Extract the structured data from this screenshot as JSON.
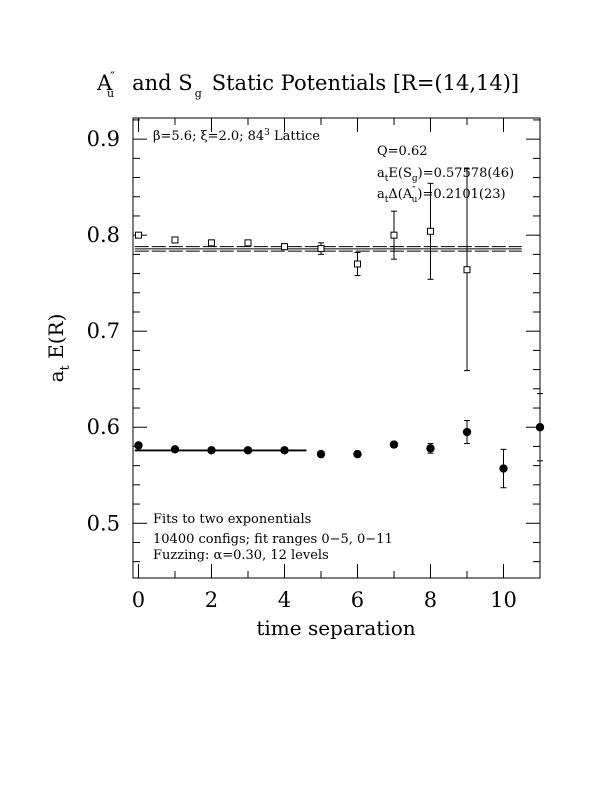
{
  "chart_data": {
    "type": "scatter",
    "title": {
      "part1": "A",
      "part1_sup": "″",
      "part1_sub": "u",
      "part2": "and S",
      "part2_sub": "g",
      "part3": "Static Potentials [R=(14,14)]"
    },
    "xlabel": "time separation",
    "ylabel": {
      "main": "a",
      "sub": "t",
      "rest": " E(R)"
    },
    "xlim": [
      -0.15,
      11.0
    ],
    "ylim": [
      0.443,
      0.922
    ],
    "x_ticks": [
      0,
      2,
      4,
      6,
      8,
      10
    ],
    "y_ticks": [
      0.5,
      0.6,
      0.7,
      0.8,
      0.9
    ],
    "y_tick_labels": [
      "0.5",
      "0.6",
      "0.7",
      "0.8",
      "0.9"
    ],
    "x_tick_labels": [
      "0",
      "2",
      "4",
      "6",
      "8",
      "10"
    ],
    "lattice_info": {
      "beta": "β=5.6;",
      "xi": "ξ=2.0;",
      "lattice": "84",
      "lattice_sup": "3",
      "lattice_rest": " Lattice"
    },
    "fit_info": {
      "q": "Q=0.62",
      "e_sg": {
        "prefix": "a",
        "sub": "t",
        "mid": "E(S",
        "sub2": "g",
        "suffix": ")=0.57578(46)"
      },
      "delta_au": {
        "prefix": "a",
        "sub": "t",
        "mid": "Δ(A",
        "sup2": "″",
        "sub2": "u",
        "suffix": ")=0.2101(23)"
      }
    },
    "notes": [
      "Fits to two exponentials",
      "10400 configs; fit ranges 0−5, 0−11",
      "Fuzzing: α=0.30, 12 levels"
    ],
    "series": [
      {
        "marker": "open-square",
        "x": [
          0,
          1,
          2,
          3,
          4,
          5,
          6,
          7,
          8,
          9
        ],
        "y": [
          0.8,
          0.795,
          0.792,
          0.792,
          0.788,
          0.786,
          0.77,
          0.8,
          0.804,
          0.764
        ],
        "yerr": [
          0.002,
          0.002,
          0.002,
          0.002,
          0.003,
          0.006,
          0.012,
          0.025,
          0.05,
          0.105
        ]
      },
      {
        "marker": "filled-circle",
        "x": [
          0,
          1,
          2,
          3,
          4,
          5,
          6,
          7,
          8,
          9,
          10,
          11
        ],
        "y": [
          0.581,
          0.577,
          0.576,
          0.576,
          0.576,
          0.572,
          0.572,
          0.582,
          0.578,
          0.595,
          0.557,
          0.6
        ],
        "yerr": [
          0.001,
          0.001,
          0.001,
          0.001,
          0.001,
          0.001,
          0.002,
          0.003,
          0.005,
          0.012,
          0.02,
          0.035
        ]
      }
    ],
    "fit_bands": [
      {
        "center": 0.7857,
        "half_width": 0.0023,
        "x_range": [
          -0.1,
          10.5
        ]
      },
      {
        "center": 0.57578,
        "half_width": 0.00046,
        "x_range": [
          -0.1,
          4.6
        ]
      }
    ]
  }
}
